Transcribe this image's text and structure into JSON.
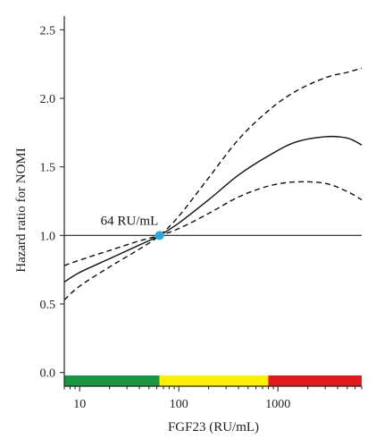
{
  "chart_data": {
    "type": "line",
    "xlabel": "FGF23 (RU/mL)",
    "ylabel": "Hazard ratio for NOMI",
    "x_scale": "log",
    "xlim": [
      7,
      7000
    ],
    "ylim": [
      -0.1,
      2.6
    ],
    "x_ticks": [
      {
        "value": 10,
        "label": "10"
      },
      {
        "value": 100,
        "label": "100"
      },
      {
        "value": 1000,
        "label": "1000"
      }
    ],
    "y_ticks": [
      {
        "value": 0.0,
        "label": "0.0"
      },
      {
        "value": 0.5,
        "label": "0.5"
      },
      {
        "value": 1.0,
        "label": "1.0"
      },
      {
        "value": 1.5,
        "label": "1.5"
      },
      {
        "value": 2.0,
        "label": "2.0"
      },
      {
        "value": 2.5,
        "label": "2.5"
      }
    ],
    "reference_line_y": 1.0,
    "annotation": {
      "text": "64 RU/mL",
      "x": 64,
      "y": 1.0
    },
    "series": [
      {
        "style": "solid",
        "x": [
          7,
          10,
          20,
          40,
          64,
          100,
          200,
          400,
          800,
          1500,
          3000,
          5000,
          7000
        ],
        "values": [
          0.66,
          0.73,
          0.83,
          0.93,
          1.0,
          1.09,
          1.26,
          1.44,
          1.58,
          1.68,
          1.72,
          1.71,
          1.66
        ]
      },
      {
        "style": "dashed",
        "x": [
          7,
          10,
          20,
          40,
          64,
          100,
          200,
          400,
          800,
          1500,
          3000,
          5000,
          7000
        ],
        "values": [
          0.53,
          0.63,
          0.77,
          0.9,
          1.0,
          1.14,
          1.42,
          1.7,
          1.91,
          2.05,
          2.15,
          2.19,
          2.22
        ]
      },
      {
        "style": "dashed",
        "x": [
          7,
          10,
          20,
          40,
          64,
          100,
          200,
          400,
          800,
          1500,
          3000,
          5000,
          7000
        ],
        "values": [
          0.78,
          0.82,
          0.89,
          0.96,
          1.0,
          1.05,
          1.16,
          1.28,
          1.36,
          1.39,
          1.38,
          1.32,
          1.26
        ]
      }
    ],
    "color_bar": [
      {
        "from": 7,
        "to": 64,
        "color": "#1a9641"
      },
      {
        "from": 64,
        "to": 800,
        "color": "#ffef00"
      },
      {
        "from": 800,
        "to": 7000,
        "color": "#e11b1b"
      }
    ],
    "marker_color": "#29a8e0",
    "grid": false
  }
}
